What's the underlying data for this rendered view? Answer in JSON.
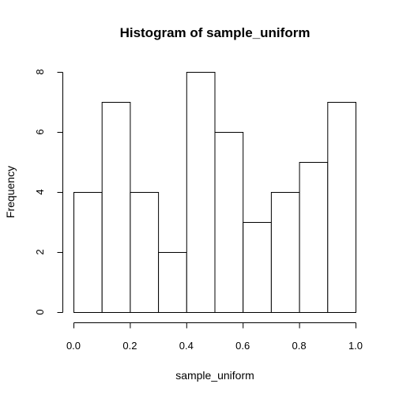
{
  "chart_data": {
    "type": "bar",
    "title": "Histogram of sample_uniform",
    "xlabel": "sample_uniform",
    "ylabel": "Frequency",
    "bins": [
      {
        "start": 0.0,
        "end": 0.1,
        "count": 4
      },
      {
        "start": 0.1,
        "end": 0.2,
        "count": 7
      },
      {
        "start": 0.2,
        "end": 0.3,
        "count": 4
      },
      {
        "start": 0.3,
        "end": 0.4,
        "count": 2
      },
      {
        "start": 0.4,
        "end": 0.5,
        "count": 8
      },
      {
        "start": 0.5,
        "end": 0.6,
        "count": 6
      },
      {
        "start": 0.6,
        "end": 0.7,
        "count": 3
      },
      {
        "start": 0.7,
        "end": 0.8,
        "count": 4
      },
      {
        "start": 0.8,
        "end": 0.9,
        "count": 5
      },
      {
        "start": 0.9,
        "end": 1.0,
        "count": 7
      }
    ],
    "xlim": [
      0.0,
      1.0
    ],
    "ylim": [
      0,
      8
    ],
    "xticks": [
      "0.0",
      "0.2",
      "0.4",
      "0.6",
      "0.8",
      "1.0"
    ],
    "yticks": [
      "0",
      "2",
      "4",
      "6",
      "8"
    ],
    "grid": false,
    "legend": "none"
  }
}
